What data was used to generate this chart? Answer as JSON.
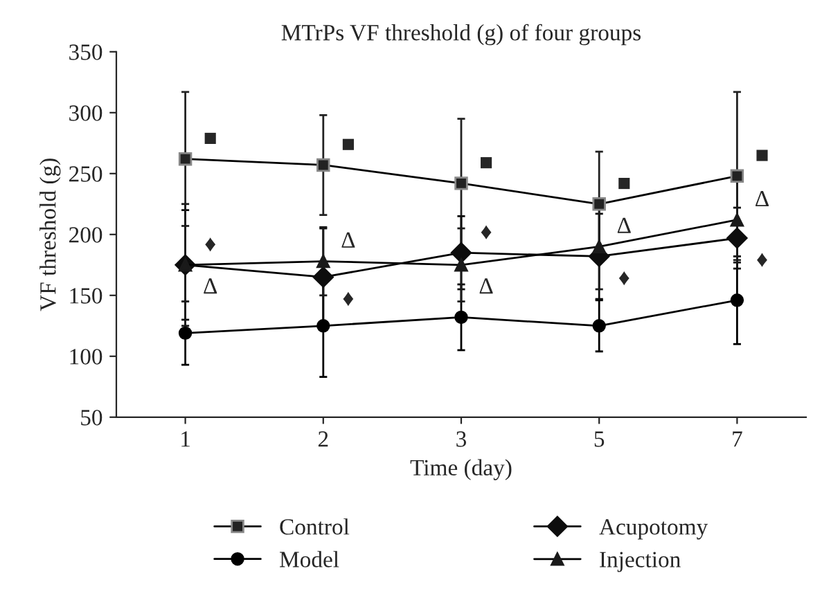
{
  "chart_data": {
    "type": "line",
    "title": "MTrPs VF threshold (g) of four groups",
    "xlabel": "Time (day)",
    "ylabel": "VF threshold (g)",
    "categories": [
      "1",
      "2",
      "3",
      "5",
      "7"
    ],
    "series": [
      {
        "name": "Control",
        "color": "#222222",
        "marker": "square",
        "values": [
          262,
          257,
          242,
          225,
          248
        ],
        "errors": [
          55,
          41,
          53,
          43,
          69
        ]
      },
      {
        "name": "Model",
        "color": "#000000",
        "marker": "circle",
        "values": [
          119,
          125,
          132,
          125,
          146
        ],
        "errors": [
          26,
          42,
          27,
          21,
          36
        ]
      },
      {
        "name": "Acupotomy",
        "color": "#0d0d0d",
        "marker": "diamond",
        "values": [
          175,
          165,
          185,
          182,
          197
        ],
        "errors": [
          45,
          40,
          30,
          35,
          25
        ]
      },
      {
        "name": "Injection",
        "color": "#1a1a1a",
        "marker": "triangle",
        "values": [
          175,
          178,
          175,
          190,
          212
        ],
        "errors": [
          50,
          28,
          30,
          35,
          35
        ]
      }
    ],
    "annotations": [
      {
        "text": "■",
        "x": "1",
        "y": 262
      },
      {
        "text": "■",
        "x": "2",
        "y": 257
      },
      {
        "text": "■",
        "x": "3",
        "y": 242
      },
      {
        "text": "■",
        "x": "5",
        "y": 225
      },
      {
        "text": "■",
        "x": "7",
        "y": 248
      },
      {
        "text": "♦",
        "x": "1",
        "y": 175
      },
      {
        "text": "♦",
        "x": "2",
        "y": 165
      },
      {
        "text": "♦",
        "x": "3",
        "y": 185
      },
      {
        "text": "♦",
        "x": "5",
        "y": 182
      },
      {
        "text": "♦",
        "x": "7",
        "y": 197
      },
      {
        "text": "Δ",
        "x": "1",
        "y": 175
      },
      {
        "text": "Δ",
        "x": "2",
        "y": 178
      },
      {
        "text": "Δ",
        "x": "3",
        "y": 175
      },
      {
        "text": "Δ",
        "x": "5",
        "y": 190
      },
      {
        "text": "Δ",
        "x": "7",
        "y": 212
      }
    ],
    "ylim": [
      50,
      350
    ],
    "yticks": [
      50,
      100,
      150,
      200,
      250,
      300,
      350
    ],
    "grid": false,
    "legend": "bottom",
    "line_style": "solid"
  }
}
